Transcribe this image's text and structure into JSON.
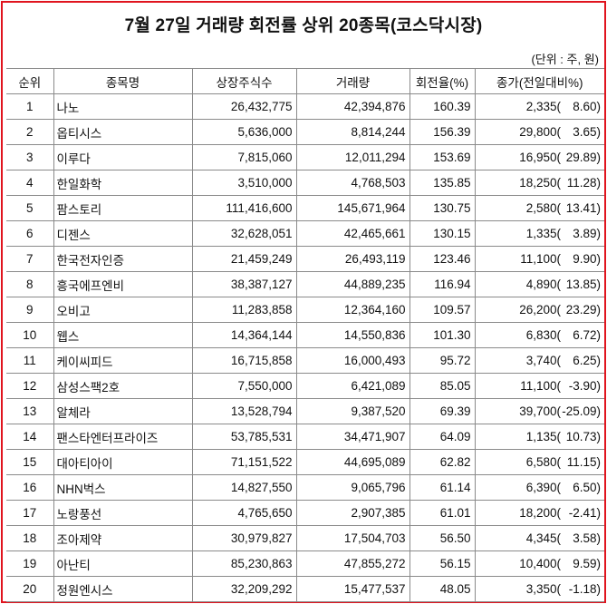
{
  "title": "7월 27일 거래량 회전률 상위 20종목(코스닥시장)",
  "unit": "(단위 : 주, 원)",
  "headers": [
    "순위",
    "종목명",
    "상장주식수",
    "거래량",
    "회전율(%)",
    "종가(전일대비%)"
  ],
  "rows": [
    {
      "rank": "1",
      "name": "나노",
      "shares": "26,432,775",
      "volume": "42,394,876",
      "turnover": "160.39",
      "close": "2,335(",
      "change": "8.60)"
    },
    {
      "rank": "2",
      "name": "옵티시스",
      "shares": "5,636,000",
      "volume": "8,814,244",
      "turnover": "156.39",
      "close": "29,800(",
      "change": "3.65)"
    },
    {
      "rank": "3",
      "name": "이루다",
      "shares": "7,815,060",
      "volume": "12,011,294",
      "turnover": "153.69",
      "close": "16,950(",
      "change": "29.89)"
    },
    {
      "rank": "4",
      "name": "한일화학",
      "shares": "3,510,000",
      "volume": "4,768,503",
      "turnover": "135.85",
      "close": "18,250(",
      "change": "11.28)"
    },
    {
      "rank": "5",
      "name": "팜스토리",
      "shares": "111,416,600",
      "volume": "145,671,964",
      "turnover": "130.75",
      "close": "2,580(",
      "change": "13.41)"
    },
    {
      "rank": "6",
      "name": "디젠스",
      "shares": "32,628,051",
      "volume": "42,465,661",
      "turnover": "130.15",
      "close": "1,335(",
      "change": "3.89)"
    },
    {
      "rank": "7",
      "name": "한국전자인증",
      "shares": "21,459,249",
      "volume": "26,493,119",
      "turnover": "123.46",
      "close": "11,100(",
      "change": "9.90)"
    },
    {
      "rank": "8",
      "name": "흥국에프엔비",
      "shares": "38,387,127",
      "volume": "44,889,235",
      "turnover": "116.94",
      "close": "4,890(",
      "change": "13.85)"
    },
    {
      "rank": "9",
      "name": "오비고",
      "shares": "11,283,858",
      "volume": "12,364,160",
      "turnover": "109.57",
      "close": "26,200(",
      "change": "23.29)"
    },
    {
      "rank": "10",
      "name": "웹스",
      "shares": "14,364,144",
      "volume": "14,550,836",
      "turnover": "101.30",
      "close": "6,830(",
      "change": "6.72)"
    },
    {
      "rank": "11",
      "name": "케이씨피드",
      "shares": "16,715,858",
      "volume": "16,000,493",
      "turnover": "95.72",
      "close": "3,740(",
      "change": "6.25)"
    },
    {
      "rank": "12",
      "name": "삼성스팩2호",
      "shares": "7,550,000",
      "volume": "6,421,089",
      "turnover": "85.05",
      "close": "11,100(",
      "change": "-3.90)"
    },
    {
      "rank": "13",
      "name": "알체라",
      "shares": "13,528,794",
      "volume": "9,387,520",
      "turnover": "69.39",
      "close": "39,700(",
      "change": "-25.09)"
    },
    {
      "rank": "14",
      "name": "팬스타엔터프라이즈",
      "shares": "53,785,531",
      "volume": "34,471,907",
      "turnover": "64.09",
      "close": "1,135(",
      "change": "10.73)"
    },
    {
      "rank": "15",
      "name": "대아티아이",
      "shares": "71,151,522",
      "volume": "44,695,089",
      "turnover": "62.82",
      "close": "6,580(",
      "change": "11.15)"
    },
    {
      "rank": "16",
      "name": "NHN벅스",
      "shares": "14,827,550",
      "volume": "9,065,796",
      "turnover": "61.14",
      "close": "6,390(",
      "change": "6.50)"
    },
    {
      "rank": "17",
      "name": "노랑풍선",
      "shares": "4,765,650",
      "volume": "2,907,385",
      "turnover": "61.01",
      "close": "18,200(",
      "change": "-2.41)"
    },
    {
      "rank": "18",
      "name": "조아제약",
      "shares": "30,979,827",
      "volume": "17,504,703",
      "turnover": "56.50",
      "close": "4,345(",
      "change": "3.58)"
    },
    {
      "rank": "19",
      "name": "아난티",
      "shares": "85,230,863",
      "volume": "47,855,272",
      "turnover": "56.15",
      "close": "10,400(",
      "change": "9.59)"
    },
    {
      "rank": "20",
      "name": "정원엔시스",
      "shares": "32,209,292",
      "volume": "15,477,537",
      "turnover": "48.05",
      "close": "3,350(",
      "change": "-1.18)"
    }
  ],
  "colors": {
    "border": "#e0141e",
    "grid": "#8a8a8a"
  }
}
